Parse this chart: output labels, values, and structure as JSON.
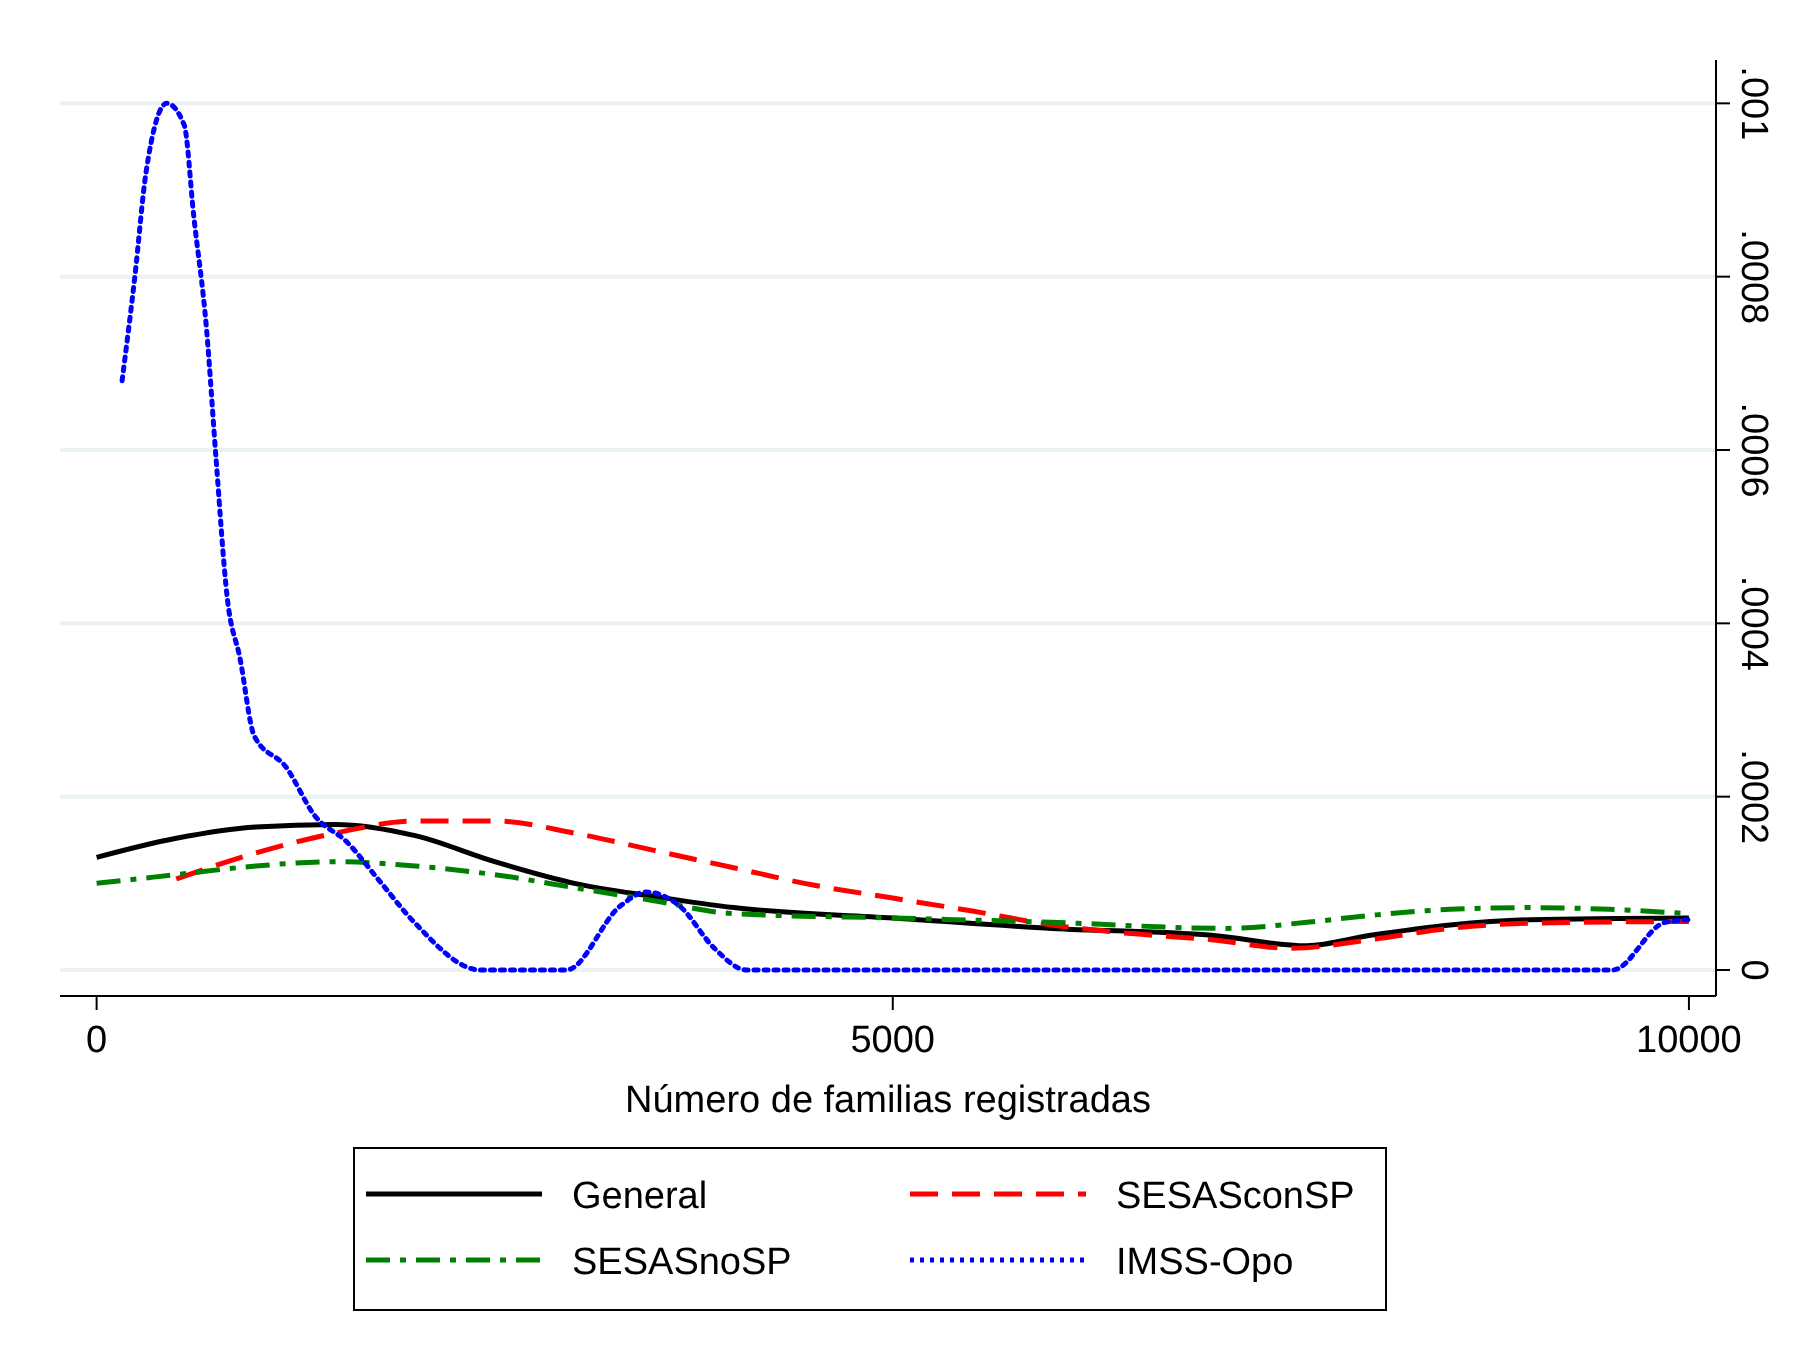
{
  "chart_data": {
    "type": "line",
    "xlabel": "Número de familias registradas",
    "xlim": [
      -230,
      10170
    ],
    "xticks": [
      0,
      5000,
      10000
    ],
    "ylim": [
      -3e-05,
      0.00105
    ],
    "yticks": [
      0,
      {
        "value": 0.0002,
        "label": ".0002"
      },
      {
        "value": 0.0004,
        "label": ".0004"
      },
      {
        "value": 0.0006,
        "label": ".0006"
      },
      {
        "value": 0.0008,
        "label": ".0008"
      },
      {
        "value": 0.001,
        "label": ".001"
      }
    ],
    "grid": "y",
    "legend": "bottom",
    "marker": "none",
    "series": [
      {
        "name": "General",
        "color": "#000000",
        "line_style": "solid",
        "x": [
          0,
          500,
          1000,
          1500,
          2000,
          2500,
          3000,
          3500,
          4000,
          5000,
          6000,
          7000,
          7600,
          8000,
          8500,
          9000,
          10000
        ],
        "values": [
          0.00013,
          0.000152,
          0.000165,
          0.000168,
          0.000155,
          0.000125,
          0.0001,
          8.5e-05,
          7.2e-05,
          6e-05,
          4.8e-05,
          4e-05,
          2.8e-05,
          4e-05,
          5.2e-05,
          5.8e-05,
          6e-05
        ]
      },
      {
        "name": "SESASconSP",
        "color": "#ff0000",
        "line_style": "dashed",
        "x": [
          500,
          1000,
          1500,
          2000,
          2500,
          3000,
          3500,
          4000,
          4500,
          5000,
          5500,
          6000,
          6500,
          7000,
          7500,
          8000,
          8500,
          9000,
          10000
        ],
        "values": [
          0.000105,
          0.000135,
          0.000158,
          0.000172,
          0.000172,
          0.000158,
          0.000138,
          0.000118,
          9.8e-05,
          8.3e-05,
          6.8e-05,
          5.2e-05,
          4.2e-05,
          3.5e-05,
          2.5e-05,
          3.5e-05,
          4.8e-05,
          5.4e-05,
          5.6e-05
        ]
      },
      {
        "name": "SESASnoSP",
        "color": "#008000",
        "line_style": "dashdot",
        "x": [
          0,
          500,
          1000,
          1500,
          2000,
          2500,
          3000,
          3500,
          4000,
          5000,
          6000,
          7100,
          7600,
          8000,
          8500,
          9000,
          9500,
          10000
        ],
        "values": [
          0.0001,
          0.00011,
          0.00012,
          0.000125,
          0.00012,
          0.00011,
          9.5e-05,
          8e-05,
          6.5e-05,
          6e-05,
          5.5e-05,
          4.8e-05,
          5.5e-05,
          6.3e-05,
          7e-05,
          7.2e-05,
          7e-05,
          6.5e-05
        ]
      },
      {
        "name": "IMSS-Opo",
        "color": "#0000ff",
        "line_style": "dotted",
        "x": [
          160,
          240,
          310,
          440,
          550,
          610,
          690,
          750,
          820,
          900,
          990,
          1190,
          1370,
          1570,
          1780,
          1990,
          2410,
          2950,
          3290,
          3450,
          3660,
          3880,
          4080,
          9520,
          9850,
          10000
        ],
        "values": [
          0.00068,
          0.0008,
          0.00092,
          0.001,
          0.000975,
          0.00087,
          0.00074,
          0.00059,
          0.00043,
          0.00036,
          0.00027,
          0.000234,
          0.000178,
          0.000148,
          0.000102,
          5.6e-05,
          0,
          0,
          7.4e-05,
          9e-05,
          7.4e-05,
          2.5e-05,
          0,
          0,
          5.5e-05,
          5.8e-05
        ]
      }
    ]
  }
}
